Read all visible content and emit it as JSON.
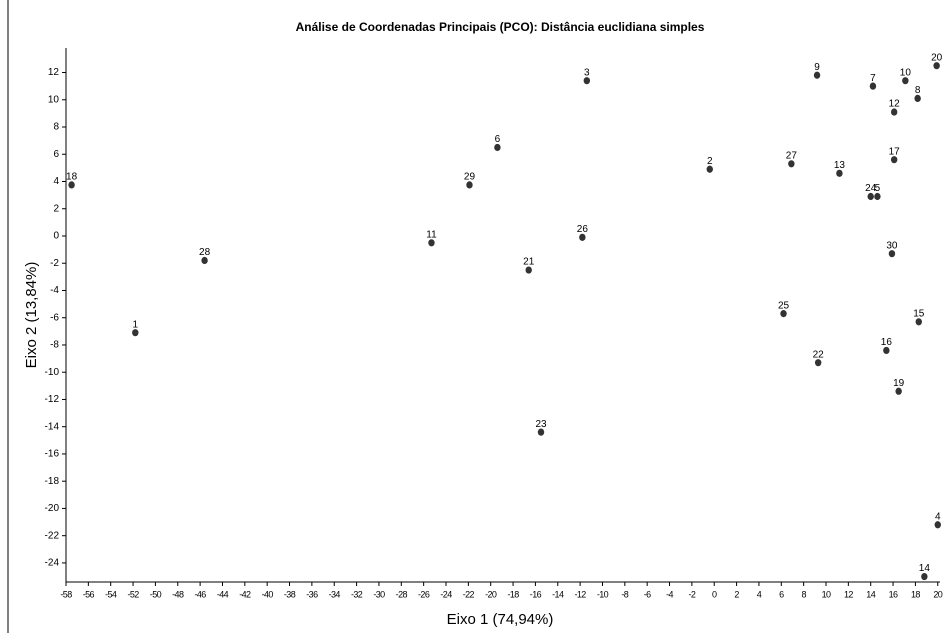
{
  "chart_data": {
    "type": "scatter",
    "title": "Análise de Coordenadas Principais  (PCO): Distância euclidiana simples",
    "xlabel": "Eixo 1 (74,94%)",
    "ylabel": "Eixo 2 (13,84%)",
    "xlim": [
      -58,
      20.2
    ],
    "ylim": [
      -25.4,
      13.8
    ],
    "xticks": [
      -58,
      -56,
      -54,
      -52,
      -50,
      -48,
      -46,
      -44,
      -42,
      -40,
      -38,
      -36,
      -34,
      -32,
      -30,
      -28,
      -26,
      -24,
      -22,
      -20,
      -18,
      -16,
      -14,
      -12,
      -10,
      -8,
      -6,
      -4,
      -2,
      0,
      2,
      4,
      6,
      8,
      10,
      12,
      14,
      16,
      18,
      20
    ],
    "yticks": [
      12,
      10,
      8,
      6,
      4,
      2,
      0,
      -2,
      -4,
      -6,
      -8,
      -10,
      -12,
      -14,
      -16,
      -18,
      -20,
      -22,
      -24
    ],
    "color": "#333333",
    "labels": [
      "18",
      "1",
      "28",
      "29",
      "6",
      "11",
      "21",
      "23",
      "3",
      "26",
      "2",
      "27",
      "25",
      "22",
      "9",
      "13",
      "7",
      "24",
      "5",
      "10",
      "8",
      "12",
      "17",
      "30",
      "15",
      "16",
      "19",
      "20",
      "4",
      "14"
    ],
    "x": [
      -57.5,
      -51.8,
      -45.6,
      -21.9,
      -19.4,
      -25.3,
      -16.6,
      -15.5,
      -11.4,
      -11.8,
      -0.4,
      6.9,
      6.2,
      9.3,
      9.2,
      11.2,
      14.2,
      14.0,
      14.6,
      17.1,
      18.2,
      16.1,
      16.1,
      15.9,
      18.3,
      15.4,
      16.5,
      19.9,
      20.0,
      18.8
    ],
    "y": [
      3.75,
      -7.1,
      -1.8,
      3.75,
      6.5,
      -0.5,
      -2.5,
      -14.4,
      11.4,
      -0.1,
      4.9,
      5.3,
      -5.7,
      -9.3,
      11.8,
      4.6,
      11.0,
      2.9,
      2.9,
      11.4,
      10.1,
      9.1,
      5.6,
      -1.3,
      -6.3,
      -8.4,
      -11.4,
      12.5,
      -21.2,
      -25.0
    ]
  }
}
